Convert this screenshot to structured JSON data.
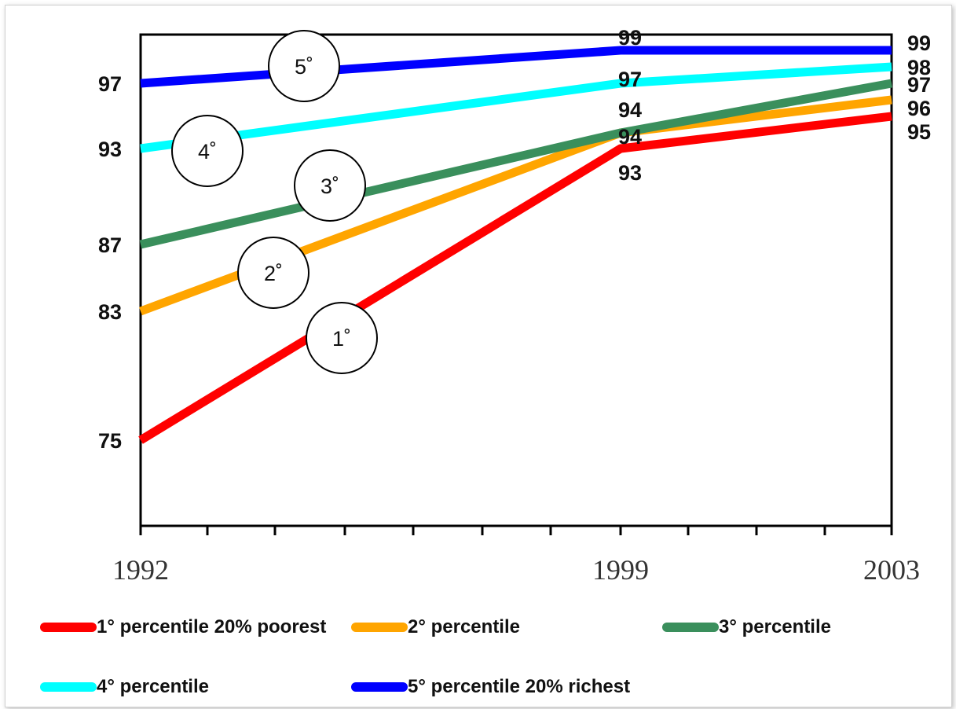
{
  "chart_data": {
    "type": "line",
    "x": [
      "1992",
      "1999",
      "2003"
    ],
    "y_ticks": [
      "75",
      "83",
      "87",
      "93",
      "97"
    ],
    "series": [
      {
        "name": "1° percentile 20% poorest",
        "color": "#ff0000",
        "values": [
          75,
          93,
          95
        ],
        "marker": "1˚",
        "value_labels": [
          "",
          "93",
          "95"
        ]
      },
      {
        "name": "2° percentile",
        "color": "#ffa500",
        "values": [
          83,
          94,
          96
        ],
        "marker": "2˚",
        "value_labels": [
          "",
          "94",
          "96"
        ]
      },
      {
        "name": "3° percentile",
        "color": "#3a8f5c",
        "values": [
          87,
          94,
          97
        ],
        "marker": "3˚",
        "value_labels": [
          "",
          "94",
          "97"
        ]
      },
      {
        "name": "4° percentile",
        "color": "#00ffff",
        "values": [
          93,
          97,
          98
        ],
        "marker": "4˚",
        "value_labels": [
          "",
          "97",
          "98"
        ]
      },
      {
        "name": "5° percentile 20% richest",
        "color": "#0000ff",
        "values": [
          97,
          99,
          99
        ],
        "marker": "5˚",
        "value_labels": [
          "",
          "99",
          "99"
        ]
      }
    ],
    "grid": false,
    "legend_position": "bottom"
  }
}
